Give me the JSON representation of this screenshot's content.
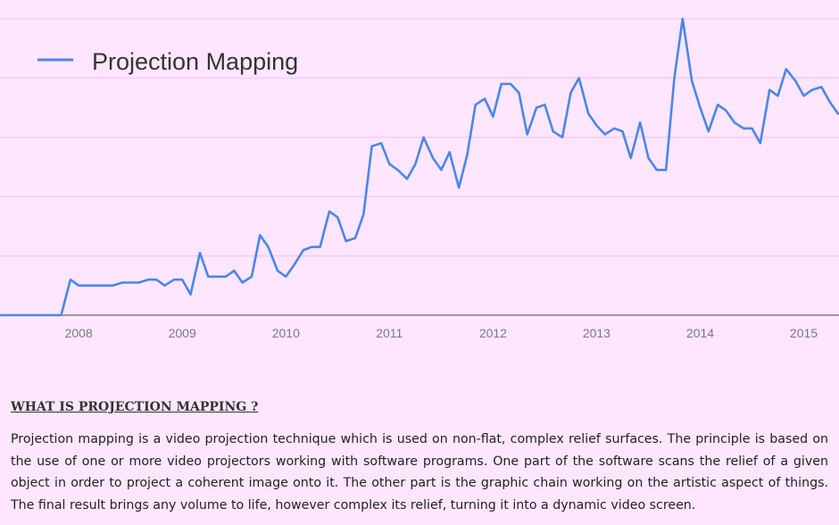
{
  "chart_data": {
    "type": "line",
    "title": "",
    "xlabel": "",
    "ylabel": "",
    "legend": "top-left",
    "series": [
      {
        "name": "Projection Mapping",
        "color": "#4a86e8",
        "x": [
          2007.25,
          2007.33,
          2007.42,
          2007.5,
          2007.58,
          2007.67,
          2007.75,
          2007.83,
          2007.92,
          2008.0,
          2008.08,
          2008.17,
          2008.25,
          2008.33,
          2008.42,
          2008.5,
          2008.58,
          2008.67,
          2008.75,
          2008.83,
          2008.92,
          2009.0,
          2009.08,
          2009.17,
          2009.25,
          2009.33,
          2009.42,
          2009.5,
          2009.58,
          2009.67,
          2009.75,
          2009.83,
          2009.92,
          2010.0,
          2010.08,
          2010.17,
          2010.25,
          2010.33,
          2010.42,
          2010.5,
          2010.58,
          2010.67,
          2010.75,
          2010.83,
          2010.92,
          2011.0,
          2011.08,
          2011.17,
          2011.25,
          2011.33,
          2011.42,
          2011.5,
          2011.58,
          2011.67,
          2011.75,
          2011.83,
          2011.92,
          2012.0,
          2012.08,
          2012.17,
          2012.25,
          2012.33,
          2012.42,
          2012.5,
          2012.58,
          2012.67,
          2012.75,
          2012.83,
          2012.92,
          2013.0,
          2013.08,
          2013.17,
          2013.25,
          2013.33,
          2013.42,
          2013.5,
          2013.58,
          2013.67,
          2013.75,
          2013.83,
          2013.92,
          2014.0,
          2014.08,
          2014.17,
          2014.25,
          2014.33,
          2014.42,
          2014.5,
          2014.58,
          2014.67,
          2014.75,
          2014.83,
          2014.92,
          2015.0,
          2015.08,
          2015.17,
          2015.25,
          2015.33
        ],
        "values": [
          0,
          0,
          0,
          0,
          0,
          0,
          0,
          0,
          12,
          10,
          10,
          10,
          10,
          10,
          11,
          11,
          11,
          12,
          12,
          10,
          12,
          12,
          7,
          21,
          13,
          13,
          13,
          15,
          11,
          13,
          27,
          23,
          15,
          13,
          17,
          22,
          23,
          23,
          35,
          33,
          25,
          26,
          34,
          57,
          58,
          51,
          49,
          46,
          51,
          60,
          53,
          49,
          55,
          43,
          54,
          71,
          73,
          67,
          78,
          78,
          75,
          61,
          70,
          71,
          62,
          60,
          75,
          80,
          68,
          64,
          61,
          63,
          62,
          53,
          65,
          53,
          49,
          49,
          80,
          100,
          79,
          70,
          62,
          71,
          69,
          65,
          63,
          63,
          58,
          76,
          74,
          83,
          79,
          74,
          76,
          77,
          72,
          68
        ]
      }
    ],
    "x_ticks": [
      "2008",
      "2009",
      "2010",
      "2011",
      "2012",
      "2013",
      "2014",
      "2015"
    ],
    "x_tick_values": [
      2008,
      2009,
      2010,
      2011,
      2012,
      2013,
      2014,
      2015
    ],
    "xlim": [
      2007.24,
      2015.34
    ],
    "ylim": [
      0,
      100
    ],
    "gridlines_y": [
      20,
      40,
      60,
      80,
      100
    ],
    "grid": true
  },
  "article": {
    "heading": "WHAT IS PROJECTION MAPPING ?",
    "body": "Projection mapping is a video projection technique which is used on non-flat, complex relief surfaces. The principle is based on the use of one or more video projectors working with software programs. One part of the software scans the relief of a given object in order to project a coherent image onto it. The other part is the graphic chain working on the artistic aspect of things. The final result brings any volume to life, however complex its relief, turning it into a dynamic video screen."
  }
}
